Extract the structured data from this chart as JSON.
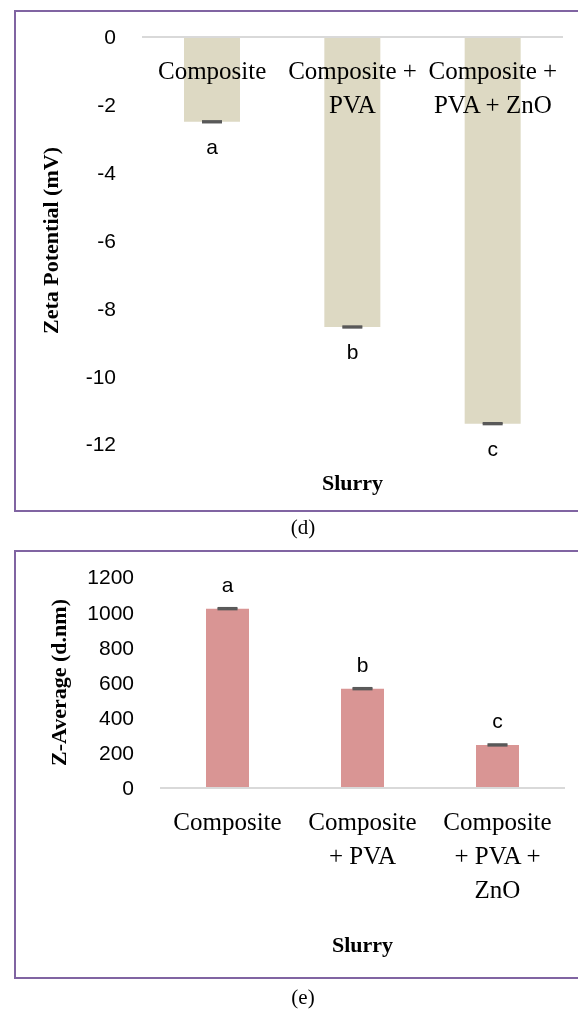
{
  "chart_data": [
    {
      "type": "bar",
      "title": "(d)",
      "xlabel": "Slurry",
      "ylabel": "Zeta Potential (mV)",
      "categories": [
        "Composite",
        "Composite + PVA",
        "Composite + PVA + ZnO"
      ],
      "values": [
        -2.5,
        -8.55,
        -11.4
      ],
      "errors": [
        0.02,
        0.02,
        0.02
      ],
      "color": "#ddd9c3",
      "ylim": [
        -12,
        0
      ],
      "yticks": [
        0,
        -2,
        -4,
        -6,
        -8,
        -10,
        -12
      ],
      "grid": false,
      "annotations": [
        {
          "text": "a",
          "x": "Composite",
          "y": -2.5
        },
        {
          "text": "b",
          "x": "Composite + PVA",
          "y": -8.55
        },
        {
          "text": "c",
          "x": "Composite + PVA + ZnO",
          "y": -11.4
        }
      ]
    },
    {
      "type": "bar",
      "title": "(e)",
      "xlabel": "Slurry",
      "ylabel": "Z-Average (d.nm)",
      "categories": [
        "Composite",
        "Composite + PVA",
        "Composite + PVA + ZnO"
      ],
      "values": [
        1020,
        565,
        245
      ],
      "errors": [
        4,
        4,
        4
      ],
      "color": "#d99594",
      "ylim": [
        0,
        1200
      ],
      "yticks": [
        0,
        200,
        400,
        600,
        800,
        1000,
        1200
      ],
      "grid": false,
      "annotations": [
        {
          "text": "a",
          "x": "Composite",
          "y": 1020
        },
        {
          "text": "b",
          "x": "Composite + PVA",
          "y": 565
        },
        {
          "text": "c",
          "x": "Composite + PVA + ZnO",
          "y": 245
        }
      ]
    }
  ]
}
